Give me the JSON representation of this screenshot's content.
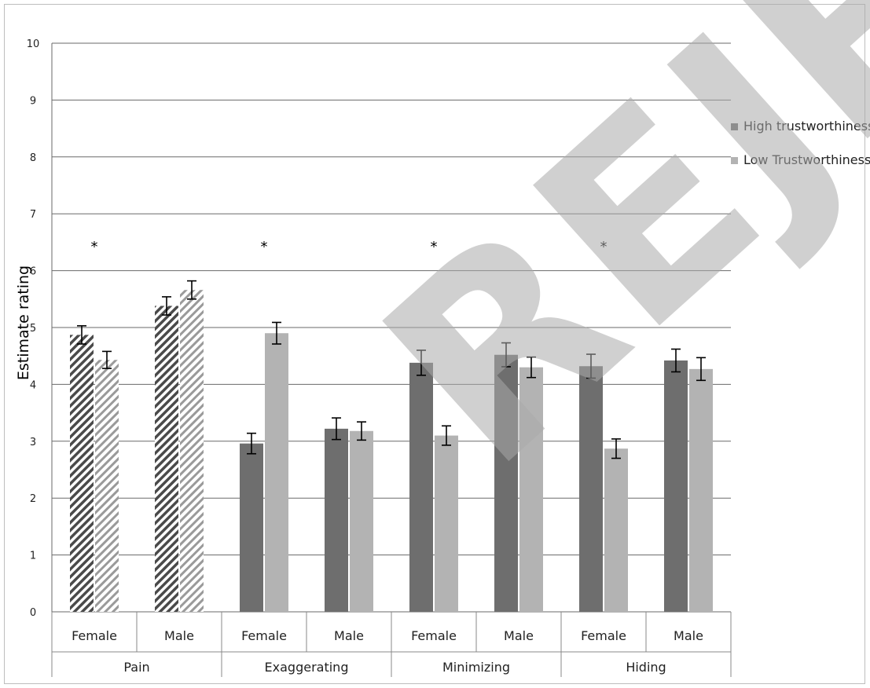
{
  "chart_data": {
    "type": "bar",
    "ylabel": "Estimate rating",
    "xlabel": "",
    "ylim": [
      0,
      10
    ],
    "yticks": [
      0,
      1,
      2,
      3,
      4,
      5,
      6,
      7,
      8,
      9,
      10
    ],
    "grid": true,
    "legend_position": "right",
    "groups": [
      {
        "label": "Pain",
        "categories": [
          "Female",
          "Male"
        ],
        "significant": "*"
      },
      {
        "label": "Exaggerating",
        "categories": [
          "Female",
          "Male"
        ],
        "significant": "*"
      },
      {
        "label": "Minimizing",
        "categories": [
          "Female",
          "Male"
        ],
        "significant": "*"
      },
      {
        "label": "Hiding",
        "categories": [
          "Female",
          "Male"
        ],
        "significant": "*"
      }
    ],
    "series": [
      {
        "name": "High trustworthiness",
        "color": "#6e6e6e",
        "values": [
          4.87,
          5.38,
          2.96,
          3.22,
          4.38,
          4.52,
          4.32,
          4.42
        ],
        "errors": [
          0.16,
          0.16,
          0.18,
          0.19,
          0.22,
          0.21,
          0.21,
          0.2
        ]
      },
      {
        "name": "Low Trustworthiness",
        "color": "#b3b3b3",
        "values": [
          4.43,
          5.66,
          4.9,
          3.18,
          3.1,
          4.3,
          2.87,
          4.27
        ],
        "errors": [
          0.15,
          0.16,
          0.19,
          0.16,
          0.17,
          0.18,
          0.17,
          0.2
        ]
      }
    ],
    "pattern": "Pain bars are diagonally hatched",
    "significance_marker_y": 6.45
  },
  "legend": {
    "high": "High trustworthiness",
    "low": "Low Trustworthiness"
  },
  "stamp": {
    "text": "REJECTED"
  }
}
